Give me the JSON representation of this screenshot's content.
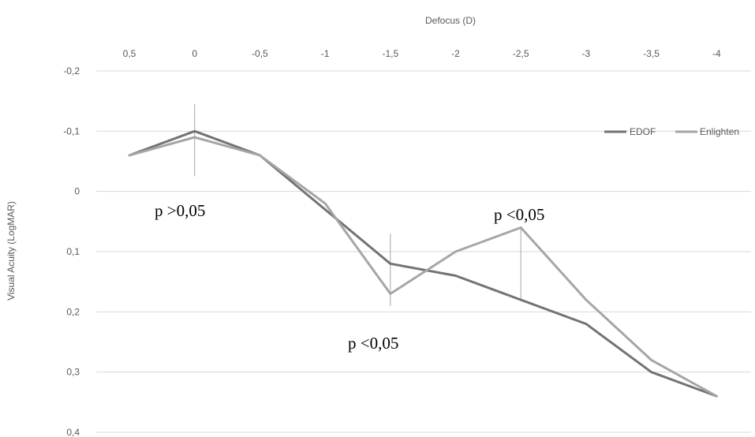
{
  "chart_data": {
    "type": "line",
    "xlabel": "Defocus (D)",
    "ylabel": "Visual Acuity (LogMAR)",
    "x": [
      "0,5",
      "0",
      "-0,5",
      "-1",
      "-1,5",
      "-2",
      "-2,5",
      "-3",
      "-3,5",
      "-4"
    ],
    "y_ticks": [
      "-0,2",
      "-0,1",
      "0",
      "0,1",
      "0,2",
      "0,3",
      "0,4"
    ],
    "ylim": [
      -0.2,
      0.4
    ],
    "y_reversed": true,
    "x_axis_position": "top",
    "grid": "horizontal",
    "legend_position": "top-right",
    "series": [
      {
        "name": "EDOF",
        "color": "#737373",
        "values": [
          -0.06,
          -0.1,
          -0.06,
          0.03,
          0.12,
          0.14,
          0.18,
          0.22,
          0.3,
          0.34
        ]
      },
      {
        "name": "Enlighten",
        "color": "#a6a6a6",
        "values": [
          -0.06,
          -0.09,
          -0.06,
          0.02,
          0.17,
          0.1,
          0.06,
          0.18,
          0.28,
          0.34
        ]
      }
    ],
    "annotations": [
      {
        "text": "p >0,05",
        "x_index": 1
      },
      {
        "text": "p <0,05",
        "x_index": 4
      },
      {
        "text": "p <0,05",
        "x_index": 6
      }
    ]
  }
}
